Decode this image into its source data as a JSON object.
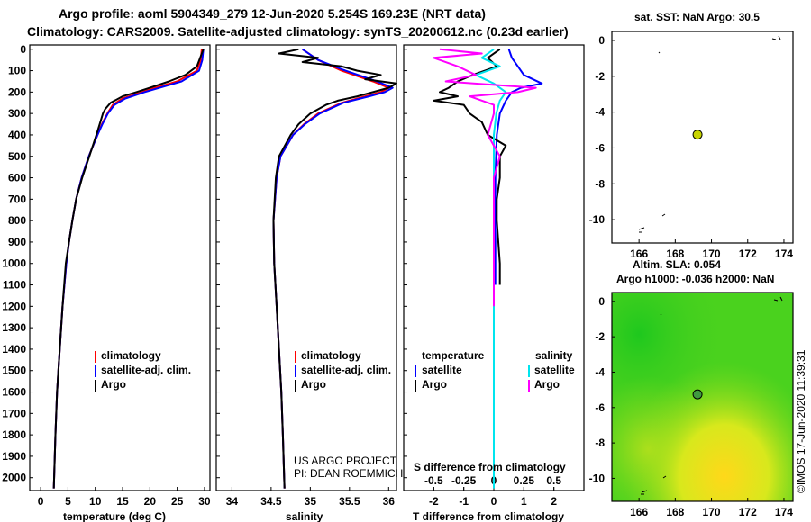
{
  "header": {
    "title_line1": "Argo profile: aoml 5904349_279 12-Jun-2020 5.254S 169.23E (NRT data)",
    "title_line2": "Climatology: CARS2009. Satellite-adjusted climatology: synTS_20200612.nc (0.23d earlier)"
  },
  "credits": {
    "project": "US ARGO PROJECT",
    "pi": "PI: DEAN ROEMMICH",
    "imos": "©IMOS 17-Jun-2020 11:39:31"
  },
  "colors": {
    "climatology": "#ff0000",
    "satellite_adj": "#0000ff",
    "argo": "#000000",
    "salinity_sat": "#00e5ee",
    "salinity_argo": "#ff00ff",
    "float_marker": "#c8d400"
  },
  "depth_ticks": [
    "0",
    "100",
    "200",
    "300",
    "400",
    "500",
    "600",
    "700",
    "800",
    "900",
    "1000",
    "1100",
    "1200",
    "1300",
    "1400",
    "1500",
    "1600",
    "1700",
    "1800",
    "1900",
    "2000"
  ],
  "chart_data": [
    {
      "type": "line",
      "panel": "temperature",
      "xlabel": "temperature (deg C)",
      "x_ticks": [
        "0",
        "5",
        "10",
        "15",
        "20",
        "25",
        "30"
      ],
      "xlim": [
        -2,
        31
      ],
      "ylim": [
        2060,
        -20
      ],
      "legend": [
        "climatology",
        "satellite-adj. clim.",
        "Argo"
      ],
      "series": [
        {
          "name": "climatology",
          "depth": [
            0,
            50,
            100,
            150,
            180,
            200,
            230,
            260,
            300,
            350,
            400,
            500,
            600,
            700,
            800,
            900,
            1000,
            1200,
            1400,
            1600,
            1800,
            2050
          ],
          "values": [
            29.5,
            29.3,
            28.6,
            25,
            21,
            18.5,
            15,
            13.2,
            12.2,
            11.2,
            10.4,
            8.8,
            7.5,
            6.5,
            5.8,
            5.2,
            4.7,
            4,
            3.5,
            3,
            2.7,
            2.4
          ]
        },
        {
          "name": "satellite-adj. clim.",
          "depth": [
            0,
            50,
            100,
            150,
            180,
            200,
            230,
            260,
            300,
            350,
            400,
            500,
            600,
            700,
            800,
            900,
            1000,
            1200,
            1400,
            1600,
            1800,
            2050
          ],
          "values": [
            29.8,
            29.6,
            29,
            25.8,
            21.8,
            19,
            15.5,
            13.5,
            12.3,
            11.3,
            10.4,
            8.8,
            7.5,
            6.5,
            5.8,
            5.2,
            4.7,
            4,
            3.5,
            3,
            2.7,
            2.4
          ]
        },
        {
          "name": "Argo",
          "depth": [
            0,
            40,
            80,
            120,
            150,
            180,
            200,
            220,
            250,
            280,
            300,
            350,
            400,
            500,
            600,
            700,
            800,
            900,
            1000,
            1200,
            1400,
            1600,
            1800,
            2050
          ],
          "values": [
            29.8,
            29.2,
            28.6,
            26.5,
            23.5,
            20,
            17.5,
            15,
            12.8,
            11.8,
            11.4,
            10.8,
            10.2,
            8.9,
            7.6,
            6.5,
            5.8,
            5.2,
            4.6,
            4,
            3.5,
            3,
            2.7,
            2.4
          ]
        }
      ]
    },
    {
      "type": "line",
      "panel": "salinity",
      "xlabel": "salinity",
      "x_ticks": [
        "34",
        "34.5",
        "35",
        "35.5",
        "36"
      ],
      "xlim": [
        33.8,
        36.1
      ],
      "ylim": [
        2060,
        -20
      ],
      "legend": [
        "climatology",
        "satellite-adj. clim.",
        "Argo"
      ],
      "series": [
        {
          "name": "climatology",
          "depth": [
            0,
            50,
            100,
            150,
            180,
            200,
            220,
            250,
            300,
            350,
            400,
            500,
            600,
            800,
            1000,
            1200,
            1400,
            1600,
            1800,
            2050
          ],
          "values": [
            34.9,
            35.1,
            35.4,
            35.8,
            36,
            35.9,
            35.7,
            35.4,
            35.1,
            34.92,
            34.78,
            34.62,
            34.57,
            34.53,
            34.54,
            34.57,
            34.6,
            34.63,
            34.65,
            34.67
          ]
        },
        {
          "name": "satellite-adj. clim.",
          "depth": [
            0,
            50,
            100,
            150,
            180,
            200,
            220,
            250,
            300,
            350,
            400,
            500,
            600,
            800,
            1000,
            1200,
            1400,
            1600,
            1800,
            2050
          ],
          "values": [
            34.9,
            35.1,
            35.45,
            35.85,
            36.05,
            35.95,
            35.75,
            35.42,
            35.12,
            34.93,
            34.78,
            34.62,
            34.57,
            34.53,
            34.54,
            34.57,
            34.6,
            34.63,
            34.65,
            34.67
          ]
        },
        {
          "name": "Argo",
          "depth": [
            0,
            20,
            40,
            60,
            80,
            100,
            120,
            140,
            160,
            180,
            200,
            220,
            240,
            260,
            300,
            350,
            400,
            500,
            600,
            800,
            1000,
            1200,
            1400,
            1600,
            1800,
            2050
          ],
          "values": [
            34.85,
            34.6,
            35.1,
            34.9,
            35.4,
            35.6,
            35.9,
            35.7,
            36.1,
            36.0,
            35.8,
            35.6,
            35.35,
            35.2,
            35.0,
            34.85,
            34.75,
            34.6,
            34.56,
            34.53,
            34.54,
            34.57,
            34.6,
            34.63,
            34.65,
            34.67
          ]
        }
      ]
    },
    {
      "type": "line",
      "panel": "difference",
      "xlabel": "T difference from climatology",
      "xlabel_top": "S difference from climatology",
      "x_ticks": [
        "-2",
        "-1",
        "0",
        "1",
        "2"
      ],
      "x_ticks_top": [
        "-0.5",
        "-0.25",
        "0",
        "0.25",
        "0.5"
      ],
      "xlim": [
        -3,
        3
      ],
      "ylim": [
        2060,
        -20
      ],
      "legend_headers": [
        "temperature",
        "salinity"
      ],
      "legend_left": [
        "satellite",
        "Argo"
      ],
      "legend_right": [
        "satellite",
        "Argo"
      ],
      "series": [
        {
          "name": "T satellite",
          "depth": [
            0,
            40,
            80,
            120,
            160,
            180,
            200,
            240,
            300,
            400,
            600,
            800,
            1000,
            1100
          ],
          "values": [
            0.5,
            0.6,
            0.8,
            1.0,
            1.6,
            0.9,
            0.6,
            0.4,
            0.2,
            0.1,
            0.05,
            0.05,
            0.05,
            0.05
          ]
        },
        {
          "name": "T Argo",
          "depth": [
            0,
            40,
            80,
            120,
            150,
            180,
            200,
            220,
            240,
            260,
            300,
            340,
            400,
            450,
            500,
            600,
            700,
            800,
            900,
            1000,
            1100
          ],
          "values": [
            0.2,
            -0.2,
            0.1,
            -0.7,
            -1.2,
            -1.5,
            -1.8,
            -1.2,
            -2.0,
            -1.0,
            -0.8,
            -0.4,
            -0.2,
            0.4,
            0.2,
            0.2,
            0.1,
            0.1,
            0.15,
            0.2,
            0.2
          ]
        },
        {
          "name": "S satellite",
          "depth": [
            0,
            40,
            80,
            120,
            160,
            200,
            240,
            300,
            400,
            600,
            800,
            1000,
            1200,
            1600,
            2050
          ],
          "values": [
            0,
            -0.1,
            0.05,
            -0.15,
            0.0,
            0.1,
            0.05,
            0.02,
            0.0,
            0.0,
            0.0,
            0.0,
            0.0,
            0.0,
            0.0
          ]
        },
        {
          "name": "S Argo",
          "depth": [
            0,
            20,
            40,
            80,
            120,
            150,
            180,
            200,
            220,
            260,
            300,
            400,
            500,
            600,
            800,
            1000,
            1200
          ],
          "values": [
            -0.45,
            -0.1,
            -0.5,
            -0.3,
            -0.15,
            -0.4,
            0.35,
            0.2,
            -0.2,
            0.0,
            0.0,
            -0.05,
            0.05,
            0.0,
            0.0,
            0.0,
            0.0
          ]
        }
      ]
    },
    {
      "type": "scatter",
      "panel": "sst-map",
      "title": "sat. SST: NaN Argo: 30.5",
      "x_ticks": [
        "166",
        "168",
        "170",
        "172",
        "174"
      ],
      "y_ticks": [
        "0",
        "-2",
        "-4",
        "-6",
        "-8",
        "-10"
      ],
      "xlim": [
        164.5,
        174.5
      ],
      "ylim": [
        -11.3,
        0.5
      ],
      "points": [
        {
          "lon": 169.23,
          "lat": -5.254
        }
      ]
    },
    {
      "type": "heatmap",
      "panel": "sla-map",
      "title_line1": "Altim. SLA: 0.054",
      "title_line2": "Argo h1000: -0.036 h2000: NaN",
      "x_ticks": [
        "166",
        "168",
        "170",
        "172",
        "174"
      ],
      "y_ticks": [
        "0",
        "-2",
        "-4",
        "-6",
        "-8",
        "-10"
      ],
      "xlim": [
        164.5,
        174.5
      ],
      "ylim": [
        -11.3,
        0.5
      ],
      "points": [
        {
          "lon": 169.23,
          "lat": -5.254
        }
      ]
    }
  ]
}
